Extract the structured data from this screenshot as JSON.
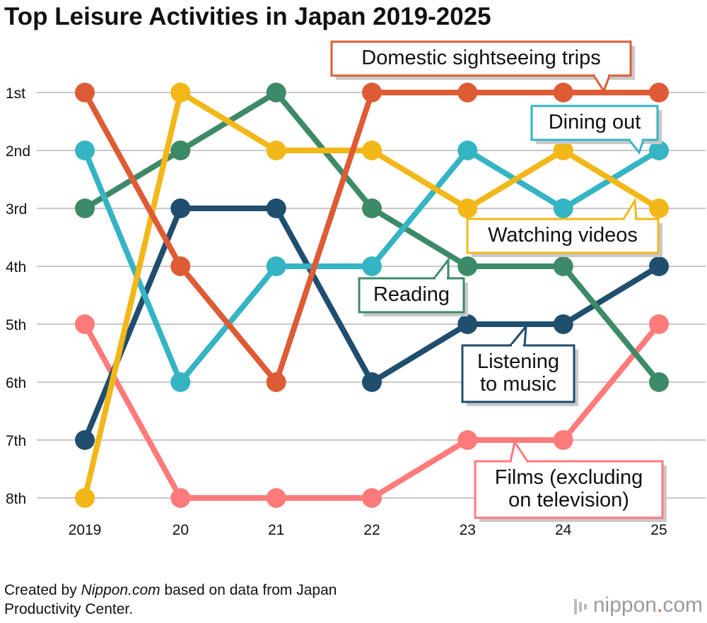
{
  "title": "Top Leisure Activities in Japan 2019-2025",
  "credit": {
    "prefix": "Created by ",
    "site": "Nippon.com",
    "suffix": " based on data from Japan",
    "line2": "Productivity Center."
  },
  "logo": {
    "left": "nippon",
    "dot": ".",
    "right": "com"
  },
  "chart_data": {
    "type": "line",
    "title": "Top Leisure Activities in Japan 2019-2025",
    "x": [
      "2019",
      "20",
      "21",
      "22",
      "23",
      "24",
      "25"
    ],
    "y_ticks": [
      "1st",
      "2nd",
      "3rd",
      "4th",
      "5th",
      "6th",
      "7th",
      "8th"
    ],
    "ylim": [
      1,
      8
    ],
    "y_inverted": true,
    "grid": true,
    "series": [
      {
        "name": "Domestic sightseeing trips",
        "color": "#dd5c35",
        "values": [
          1,
          4,
          6,
          1,
          1,
          1,
          1
        ]
      },
      {
        "name": "Dining out",
        "color": "#35b4c4",
        "values": [
          2,
          6,
          4,
          4,
          2,
          3,
          2
        ]
      },
      {
        "name": "Watching videos",
        "color": "#f2b718",
        "values": [
          8,
          1,
          2,
          2,
          3,
          2,
          3
        ]
      },
      {
        "name": "Reading",
        "color": "#3d8a68",
        "values": [
          3,
          2,
          1,
          3,
          4,
          4,
          6
        ]
      },
      {
        "name": "Listening to music",
        "color": "#1f4e6e",
        "values": [
          7,
          3,
          3,
          6,
          5,
          5,
          4
        ]
      },
      {
        "name": "Films (excluding on television)",
        "color": "#ff7a7a",
        "values": [
          5,
          8,
          8,
          8,
          7,
          7,
          5
        ]
      }
    ]
  }
}
